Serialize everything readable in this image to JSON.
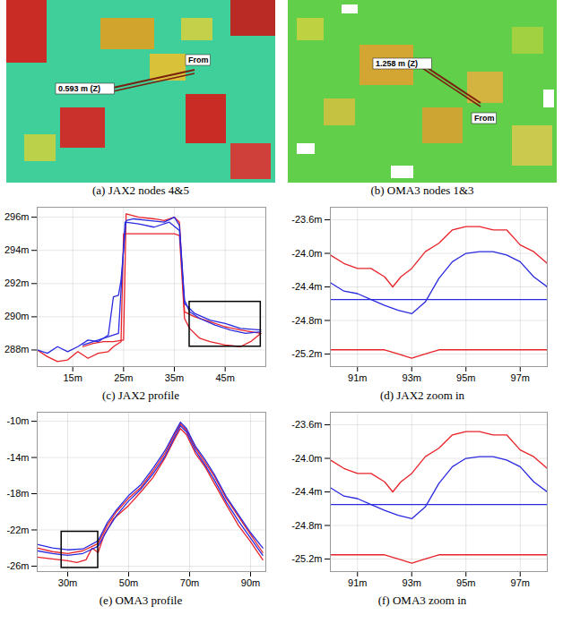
{
  "images": [
    {
      "title": "(a) JAX2 nodes 4&5",
      "labels": [
        "0.593 m (Z)",
        "From"
      ]
    },
    {
      "title": "(b) OMA3 nodes 1&3",
      "labels": [
        "1.258 m (Z)",
        "From"
      ]
    }
  ],
  "chart_data": [
    {
      "type": "line",
      "title": "(c) JAX2 profile",
      "grid": true,
      "xlim": [
        8,
        53
      ],
      "ylim": [
        287,
        296.6
      ],
      "xticks": [
        {
          "value": 15,
          "label": "15m"
        },
        {
          "value": 25,
          "label": "25m"
        },
        {
          "value": 35,
          "label": "35m"
        },
        {
          "value": 45,
          "label": "45m"
        }
      ],
      "yticks": [
        {
          "value": 288,
          "label": "288m"
        },
        {
          "value": 290,
          "label": "290m"
        },
        {
          "value": 292,
          "label": "292m"
        },
        {
          "value": 294,
          "label": "294m"
        },
        {
          "value": 296,
          "label": "296m"
        }
      ],
      "zoom_box": {
        "x": [
          38,
          52
        ],
        "y": [
          288.2,
          290.9
        ]
      },
      "series": [
        {
          "color": "#e8232a",
          "x": [
            8,
            10,
            12,
            14,
            16,
            18,
            20,
            22,
            23,
            24.5,
            25,
            27,
            30,
            33,
            35,
            36,
            37,
            38,
            40,
            42,
            45,
            48,
            50,
            52
          ],
          "values": [
            288.0,
            287.6,
            287.3,
            287.4,
            287.9,
            287.5,
            287.8,
            287.9,
            288.2,
            288.5,
            295.0,
            295.0,
            295.0,
            295.0,
            295.0,
            294.9,
            289.9,
            289.3,
            288.7,
            288.5,
            288.3,
            288.2,
            288.5,
            289.0
          ]
        },
        {
          "color": "#e8232a",
          "x": [
            17,
            19,
            21,
            23,
            25,
            25.5,
            28,
            31,
            33,
            35,
            36,
            37,
            39,
            42,
            45,
            48,
            52
          ],
          "values": [
            288.2,
            288.4,
            288.5,
            288.5,
            288.6,
            296.2,
            296.0,
            295.9,
            295.8,
            296.0,
            295.7,
            290.3,
            290.0,
            289.7,
            289.4,
            289.2,
            289.0
          ]
        },
        {
          "color": "#2a2ae0",
          "x": [
            8,
            10,
            12,
            14,
            16,
            18,
            20,
            22,
            23,
            24,
            24.5,
            25.5,
            27,
            30,
            33,
            35,
            36,
            37,
            38,
            40,
            43,
            46,
            49,
            52
          ],
          "values": [
            288.0,
            287.8,
            288.2,
            287.9,
            288.2,
            288.6,
            288.5,
            288.9,
            291.2,
            291.3,
            292.2,
            295.8,
            295.9,
            295.8,
            295.7,
            296.0,
            295.5,
            291.0,
            290.3,
            289.9,
            289.5,
            289.2,
            289.0,
            289.1
          ]
        },
        {
          "color": "#2a2ae0",
          "x": [
            17,
            20,
            24,
            25.3,
            28,
            31,
            34,
            36,
            37,
            39,
            42,
            45,
            48,
            52
          ],
          "values": [
            288.3,
            288.6,
            289.0,
            295.7,
            295.6,
            295.4,
            295.7,
            295.2,
            290.8,
            290.2,
            289.8,
            289.6,
            289.3,
            289.2
          ]
        }
      ]
    },
    {
      "type": "line",
      "title": "(d) JAX2 zoom in",
      "grid": true,
      "xlim": [
        90,
        98
      ],
      "ylim": [
        -25.35,
        -23.45
      ],
      "xticks": [
        {
          "value": 91,
          "label": "91m"
        },
        {
          "value": 93,
          "label": "93m"
        },
        {
          "value": 95,
          "label": "95m"
        },
        {
          "value": 97,
          "label": "97m"
        }
      ],
      "yticks": [
        {
          "value": -23.6,
          "label": "-23.6m"
        },
        {
          "value": -24.0,
          "label": "-24.0m"
        },
        {
          "value": -24.4,
          "label": "-24.4m"
        },
        {
          "value": -24.8,
          "label": "-24.8m"
        },
        {
          "value": -25.2,
          "label": "-25.2m"
        }
      ],
      "series": [
        {
          "color": "#e8232a",
          "x": [
            90,
            90.5,
            91,
            91.5,
            92,
            92.3,
            92.6,
            93,
            93.5,
            94,
            94.5,
            95,
            95.5,
            96,
            96.5,
            97,
            97.5,
            98
          ],
          "values": [
            -24.02,
            -24.12,
            -24.18,
            -24.18,
            -24.28,
            -24.4,
            -24.28,
            -24.18,
            -23.98,
            -23.88,
            -23.72,
            -23.68,
            -23.68,
            -23.72,
            -23.72,
            -23.9,
            -23.98,
            -24.12
          ]
        },
        {
          "color": "#2a2ae0",
          "x": [
            90,
            90.5,
            91,
            91.5,
            92,
            92.5,
            93,
            93.5,
            94,
            94.5,
            95,
            95.5,
            96,
            96.5,
            97,
            97.5,
            98
          ],
          "values": [
            -24.35,
            -24.45,
            -24.48,
            -24.55,
            -24.62,
            -24.68,
            -24.72,
            -24.58,
            -24.3,
            -24.1,
            -24.0,
            -23.98,
            -23.98,
            -24.02,
            -24.1,
            -24.28,
            -24.4
          ]
        },
        {
          "color": "#2a2ae0",
          "x": [
            90,
            92,
            94,
            96,
            98
          ],
          "values": [
            -24.55,
            -24.55,
            -24.55,
            -24.55,
            -24.55
          ]
        },
        {
          "color": "#e8232a",
          "x": [
            90,
            92,
            92.5,
            93,
            93.5,
            94,
            98
          ],
          "values": [
            -25.15,
            -25.15,
            -25.2,
            -25.25,
            -25.2,
            -25.15,
            -25.15
          ]
        }
      ]
    },
    {
      "type": "line",
      "title": "(e) OMA3 profile",
      "grid": true,
      "xlim": [
        20,
        95
      ],
      "ylim": [
        -26.6,
        -9
      ],
      "xticks": [
        {
          "value": 30,
          "label": "30m"
        },
        {
          "value": 50,
          "label": "50m"
        },
        {
          "value": 70,
          "label": "70m"
        },
        {
          "value": 90,
          "label": "90m"
        }
      ],
      "yticks": [
        {
          "value": -10,
          "label": "-10m"
        },
        {
          "value": -14,
          "label": "-14m"
        },
        {
          "value": -18,
          "label": "-18m"
        },
        {
          "value": -22,
          "label": "-22m"
        },
        {
          "value": -26,
          "label": "-26m"
        }
      ],
      "zoom_box": {
        "x": [
          28,
          40
        ],
        "y": [
          -26.2,
          -22.2
        ]
      },
      "series": [
        {
          "color": "#e8232a",
          "x": [
            20,
            25,
            30,
            35,
            40,
            43,
            46,
            50,
            54,
            58,
            62,
            65,
            67,
            69,
            72,
            75,
            78,
            82,
            86,
            90,
            94
          ],
          "values": [
            -24.0,
            -24.4,
            -24.6,
            -24.3,
            -23.5,
            -21.5,
            -20.0,
            -18.5,
            -17.3,
            -15.5,
            -13.5,
            -11.5,
            -10.3,
            -11.0,
            -13.0,
            -14.5,
            -16.0,
            -18.5,
            -20.5,
            -22.5,
            -24.5
          ]
        },
        {
          "color": "#e8232a",
          "x": [
            20,
            25,
            30,
            33,
            36,
            38,
            40,
            42,
            45,
            50,
            54,
            58,
            62,
            65,
            67,
            69,
            72,
            75,
            78,
            82,
            86,
            90,
            94
          ],
          "values": [
            -25.0,
            -25.2,
            -25.4,
            -25.6,
            -25.3,
            -24.0,
            -24.5,
            -22.5,
            -20.8,
            -19.3,
            -17.8,
            -16.2,
            -14.0,
            -12.0,
            -10.8,
            -11.5,
            -13.6,
            -15.0,
            -16.8,
            -19.2,
            -21.5,
            -23.3,
            -25.3
          ]
        },
        {
          "color": "#2a2ae0",
          "x": [
            20,
            25,
            30,
            35,
            40,
            43,
            46,
            50,
            54,
            58,
            62,
            65,
            67,
            69,
            72,
            75,
            78,
            82,
            86,
            90,
            94
          ],
          "values": [
            -23.6,
            -24.0,
            -24.2,
            -24.1,
            -23.2,
            -21.2,
            -19.8,
            -18.2,
            -17.0,
            -15.2,
            -13.2,
            -11.3,
            -10.1,
            -10.8,
            -12.8,
            -14.2,
            -15.8,
            -18.3,
            -20.3,
            -22.3,
            -24.0
          ]
        },
        {
          "color": "#2a2ae0",
          "x": [
            20,
            25,
            30,
            35,
            40,
            43,
            46,
            50,
            54,
            58,
            62,
            65,
            67,
            69,
            72,
            75,
            78,
            82,
            86,
            90,
            94
          ],
          "values": [
            -24.3,
            -24.6,
            -24.8,
            -24.6,
            -23.8,
            -22.0,
            -20.4,
            -18.8,
            -17.5,
            -15.8,
            -13.8,
            -11.8,
            -10.5,
            -11.2,
            -13.3,
            -14.8,
            -16.4,
            -18.9,
            -21.0,
            -22.9,
            -24.8
          ]
        }
      ]
    },
    {
      "type": "line",
      "title": "(f) OMA3 zoom in",
      "grid": true,
      "xlim": [
        90,
        98
      ],
      "ylim": [
        -25.35,
        -23.45
      ],
      "xticks": [
        {
          "value": 91,
          "label": "91m"
        },
        {
          "value": 93,
          "label": "93m"
        },
        {
          "value": 95,
          "label": "95m"
        },
        {
          "value": 97,
          "label": "97m"
        }
      ],
      "yticks": [
        {
          "value": -23.6,
          "label": "-23.6m"
        },
        {
          "value": -24.0,
          "label": "-24.0m"
        },
        {
          "value": -24.4,
          "label": "-24.4m"
        },
        {
          "value": -24.8,
          "label": "-24.8m"
        },
        {
          "value": -25.2,
          "label": "-25.2m"
        }
      ],
      "series": [
        {
          "color": "#e8232a",
          "x": [
            90,
            90.5,
            91,
            91.5,
            92,
            92.3,
            92.6,
            93,
            93.5,
            94,
            94.5,
            95,
            95.5,
            96,
            96.5,
            97,
            97.5,
            98
          ],
          "values": [
            -24.02,
            -24.12,
            -24.18,
            -24.18,
            -24.28,
            -24.4,
            -24.28,
            -24.18,
            -23.98,
            -23.88,
            -23.72,
            -23.68,
            -23.68,
            -23.72,
            -23.72,
            -23.9,
            -23.98,
            -24.12
          ]
        },
        {
          "color": "#2a2ae0",
          "x": [
            90,
            90.5,
            91,
            91.5,
            92,
            92.5,
            93,
            93.5,
            94,
            94.5,
            95,
            95.5,
            96,
            96.5,
            97,
            97.5,
            98
          ],
          "values": [
            -24.35,
            -24.45,
            -24.48,
            -24.55,
            -24.62,
            -24.68,
            -24.72,
            -24.58,
            -24.3,
            -24.1,
            -24.0,
            -23.98,
            -23.98,
            -24.02,
            -24.1,
            -24.28,
            -24.4
          ]
        },
        {
          "color": "#2a2ae0",
          "x": [
            90,
            92,
            94,
            96,
            98
          ],
          "values": [
            -24.55,
            -24.55,
            -24.55,
            -24.55,
            -24.55
          ]
        },
        {
          "color": "#e8232a",
          "x": [
            90,
            92,
            92.5,
            93,
            93.5,
            94,
            98
          ],
          "values": [
            -25.15,
            -25.15,
            -25.2,
            -25.25,
            -25.2,
            -25.15,
            -25.15
          ]
        }
      ]
    }
  ]
}
